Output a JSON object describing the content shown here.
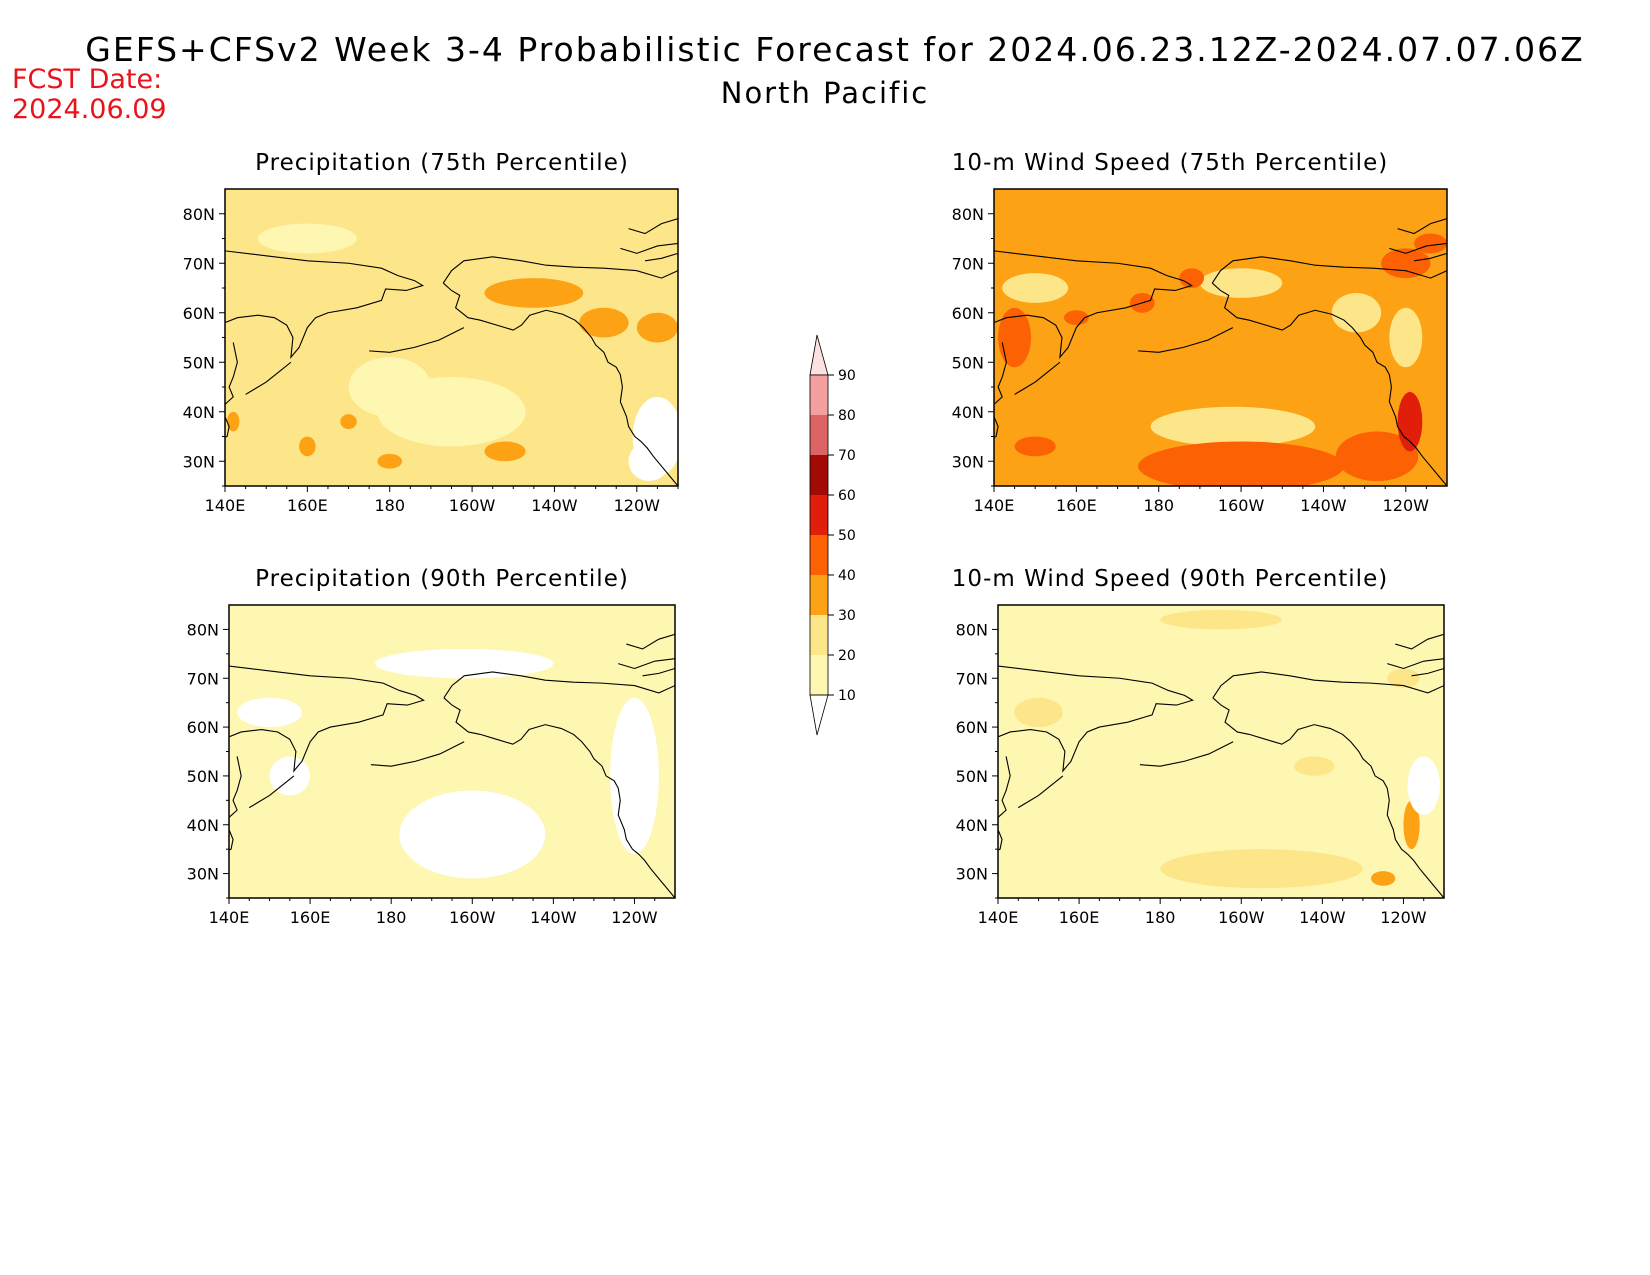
{
  "header": {
    "title": "GEFS+CFSv2 Week 3-4 Probabilistic Forecast for 2024.06.23.12Z-2024.07.07.06Z",
    "region": "North Pacific",
    "fcst_label": "FCST Date:",
    "fcst_date": "2024.06.09"
  },
  "panels": [
    {
      "title": "Precipitation (75th Percentile)",
      "field": "precip75",
      "base_color": "#fde68a"
    },
    {
      "title": "10-m Wind Speed (75th Percentile)",
      "field": "wind75",
      "base_color": "#fca214"
    },
    {
      "title": "Precipitation (90th Percentile)",
      "field": "precip90",
      "base_color": "#fef7b2"
    },
    {
      "title": "10-m Wind Speed (90th Percentile)",
      "field": "wind90",
      "base_color": "#fef7b2"
    }
  ],
  "axes": {
    "lon_ticks": [
      "140E",
      "160E",
      "180",
      "160W",
      "140W",
      "120W"
    ],
    "lat_ticks": [
      "80N",
      "70N",
      "60N",
      "50N",
      "40N",
      "30N"
    ],
    "lon_range": [
      140,
      250
    ],
    "lat_range": [
      25,
      85
    ]
  },
  "colorbar": {
    "levels": [
      "10",
      "20",
      "30",
      "40",
      "50",
      "60",
      "70",
      "80",
      "90"
    ],
    "colors": [
      "#fef7b2",
      "#fde68a",
      "#fca214",
      "#fc6204",
      "#e01e0a",
      "#a30a06",
      "#dc6464",
      "#f5a0a0",
      "#fde0e0"
    ]
  }
}
